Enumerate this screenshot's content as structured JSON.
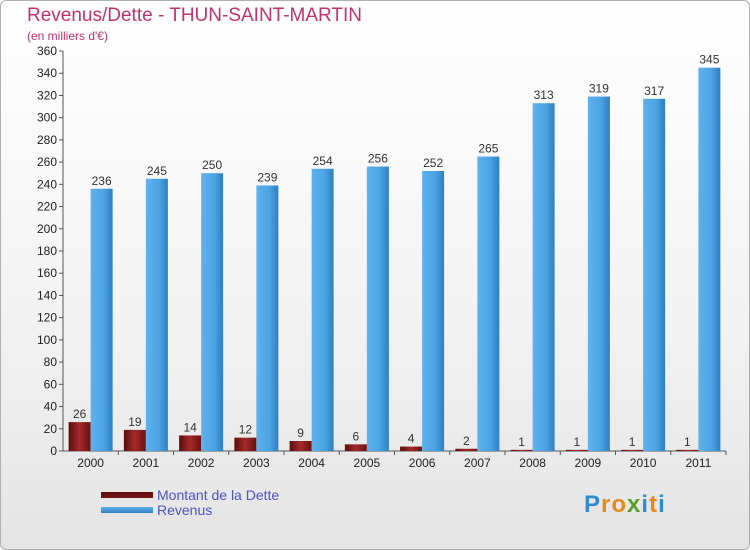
{
  "chart_data": {
    "type": "bar",
    "title": "Revenus/Dette - THUN-SAINT-MARTIN",
    "subtitle": "(en milliers d'€)",
    "xlabel": "",
    "ylabel": "",
    "ylim": [
      0,
      360
    ],
    "yticks": [
      0,
      20,
      40,
      60,
      80,
      100,
      120,
      140,
      160,
      180,
      200,
      220,
      240,
      260,
      280,
      300,
      320,
      340,
      360
    ],
    "grid": false,
    "legend_position": "bottom-left",
    "categories": [
      "2000",
      "2001",
      "2002",
      "2003",
      "2004",
      "2005",
      "2006",
      "2007",
      "2008",
      "2009",
      "2010",
      "2011"
    ],
    "series": [
      {
        "name": "Montant de la Dette",
        "color": "#7a1414",
        "values": [
          26,
          19,
          14,
          12,
          9,
          6,
          4,
          2,
          1,
          1,
          1,
          1
        ]
      },
      {
        "name": "Revenus",
        "color": "#4aa3e3",
        "values": [
          236,
          245,
          250,
          239,
          254,
          256,
          252,
          265,
          313,
          319,
          317,
          345
        ]
      }
    ]
  },
  "brand": {
    "logo_text": "Proxiti"
  }
}
